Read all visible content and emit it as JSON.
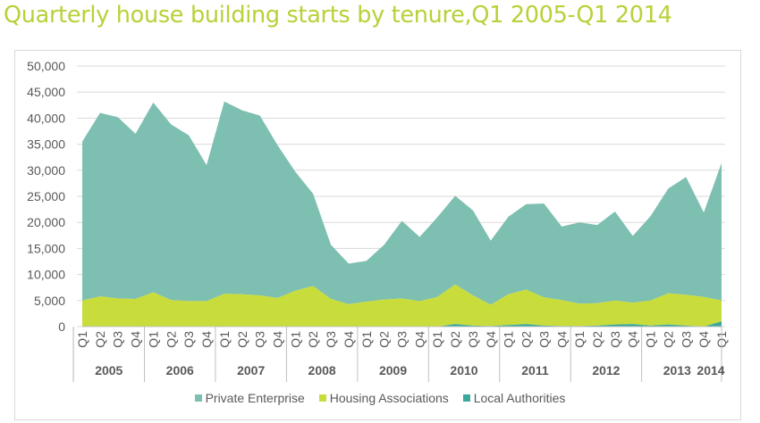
{
  "title": "Quarterly house building starts by tenure,Q1 2005-Q1 2014",
  "colors": {
    "private": "#7dbfb0",
    "housing": "#c8dc3c",
    "local": "#3aa89a",
    "title": "#b6d238"
  },
  "chart_data": {
    "type": "area",
    "stacked": true,
    "title": "Quarterly house building starts by tenure,Q1 2005-Q1 2014",
    "xlabel": "",
    "ylabel": "",
    "ylim": [
      0,
      50000
    ],
    "yticks": [
      "50,000",
      "45,000",
      "40,000",
      "35,000",
      "30,000",
      "25,000",
      "20,000",
      "15,000",
      "10,000",
      "5,000",
      "0"
    ],
    "grid": true,
    "legend": "bottom",
    "quarters": [
      "Q1",
      "Q2",
      "Q3",
      "Q4",
      "Q1",
      "Q2",
      "Q3",
      "Q4",
      "Q1",
      "Q2",
      "Q3",
      "Q4",
      "Q1",
      "Q2",
      "Q3",
      "Q4",
      "Q1",
      "Q2",
      "Q3",
      "Q4",
      "Q1",
      "Q2",
      "Q3",
      "Q4",
      "Q1",
      "Q2",
      "Q3",
      "Q4",
      "Q1",
      "Q2",
      "Q3",
      "Q4",
      "Q1",
      "Q2",
      "Q3",
      "Q4",
      "Q1"
    ],
    "years": [
      "2005",
      "2006",
      "2007",
      "2008",
      "2009",
      "2010",
      "2011",
      "2012",
      "2013",
      "2014"
    ],
    "series": [
      {
        "name": "Local Authorities",
        "values": [
          0,
          0,
          0,
          0,
          0,
          0,
          0,
          0,
          0,
          0,
          0,
          0,
          0,
          0,
          0,
          0,
          0,
          0,
          0,
          0,
          0,
          500,
          200,
          100,
          300,
          500,
          200,
          100,
          100,
          200,
          400,
          500,
          200,
          400,
          200,
          0,
          1000
        ]
      },
      {
        "name": "Housing Associations",
        "values": [
          5000,
          5800,
          5400,
          5300,
          6600,
          5100,
          4900,
          4900,
          6300,
          6200,
          6000,
          5500,
          6900,
          7800,
          5300,
          4300,
          4800,
          5200,
          5400,
          4900,
          5700,
          7600,
          5800,
          4100,
          5900,
          6600,
          5400,
          5000,
          4300,
          4300,
          4600,
          4100,
          4800,
          6000,
          5900,
          5700,
          4000
        ]
      },
      {
        "name": "Private Enterprise",
        "values": [
          30500,
          35200,
          34800,
          31700,
          36400,
          33700,
          31800,
          26100,
          36900,
          35300,
          34500,
          29300,
          22800,
          17700,
          10400,
          7800,
          7800,
          10500,
          14900,
          12300,
          15300,
          17000,
          16300,
          12300,
          14900,
          16400,
          18000,
          14100,
          15600,
          15000,
          17100,
          12800,
          16200,
          20100,
          22600,
          16200,
          26400
        ]
      }
    ]
  }
}
